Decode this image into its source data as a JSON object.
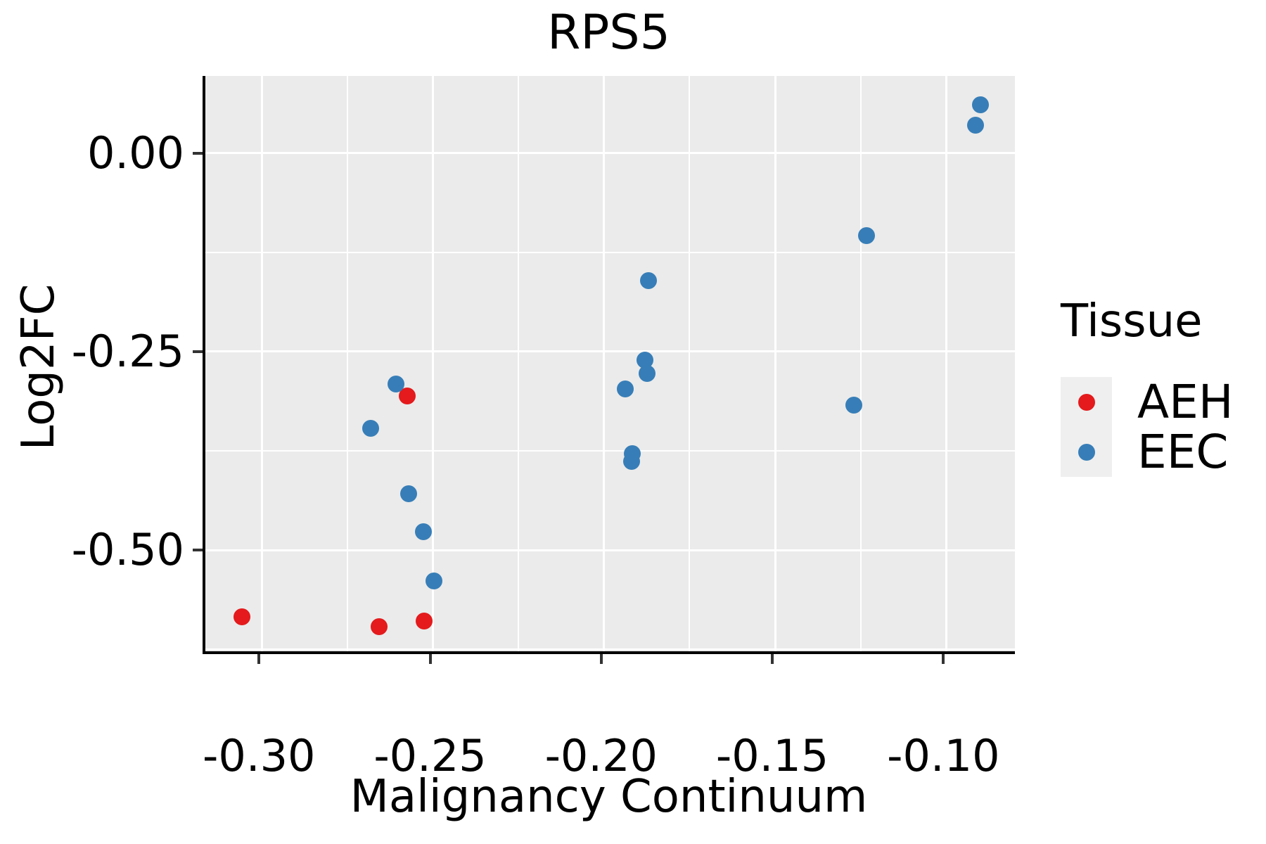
{
  "title": "RPS5",
  "axes": {
    "x": {
      "label": "Malignancy Continuum",
      "major_ticks": [
        -0.3,
        -0.25,
        -0.2,
        -0.15,
        -0.1
      ],
      "major_tick_labels": [
        "-0.30",
        "-0.25",
        "-0.20",
        "-0.15",
        "-0.10"
      ],
      "minor_ticks": [
        -0.275,
        -0.225,
        -0.175,
        -0.125
      ],
      "range": [
        -0.3165,
        -0.0791
      ]
    },
    "y": {
      "label": "Log2FC",
      "major_ticks": [
        0.0,
        -0.25,
        -0.5
      ],
      "major_tick_labels": [
        "0.00",
        "-0.25",
        "-0.50"
      ],
      "minor_ticks": [
        -0.125,
        -0.375,
        -0.625
      ],
      "range": [
        -0.6312,
        0.0975
      ]
    }
  },
  "legend": {
    "title": "Tissue",
    "items": [
      {
        "label": "AEH",
        "color": "#e41a1c"
      },
      {
        "label": "EEC",
        "color": "#377eb8"
      }
    ]
  },
  "colors": {
    "panel_background": "#ebebeb",
    "gridline": "#ffffff",
    "axis_line": "#000000",
    "tick_mark": "#333333",
    "aeh_red": "#e41a1c",
    "eec_blue": "#377eb8"
  },
  "chart_data": {
    "type": "scatter",
    "title": "RPS5",
    "xlabel": "Malignancy Continuum",
    "ylabel": "Log2FC",
    "xlim": [
      -0.3165,
      -0.0791
    ],
    "ylim": [
      -0.6312,
      0.0975
    ],
    "grid": "on",
    "legend_position": "right",
    "series": [
      {
        "name": "AEH",
        "color": "#e41a1c",
        "points": [
          [
            -0.3059,
            -0.5845
          ],
          [
            -0.2657,
            -0.5966
          ],
          [
            -0.2525,
            -0.5899
          ],
          [
            -0.2576,
            -0.3059
          ]
        ]
      },
      {
        "name": "EEC",
        "color": "#377eb8",
        "points": [
          [
            -0.2607,
            -0.2908
          ],
          [
            -0.2682,
            -0.3466
          ],
          [
            -0.2572,
            -0.4291
          ],
          [
            -0.2527,
            -0.4769
          ],
          [
            -0.2496,
            -0.539
          ],
          [
            -0.1871,
            -0.1605
          ],
          [
            -0.188,
            -0.2606
          ],
          [
            -0.1874,
            -0.2775
          ],
          [
            -0.1937,
            -0.297
          ],
          [
            -0.1917,
            -0.3786
          ],
          [
            -0.1919,
            -0.3883
          ],
          [
            -0.1233,
            -0.1037
          ],
          [
            -0.127,
            -0.3174
          ],
          [
            -0.09,
            0.0612
          ],
          [
            -0.0915,
            0.0355
          ]
        ]
      }
    ]
  }
}
